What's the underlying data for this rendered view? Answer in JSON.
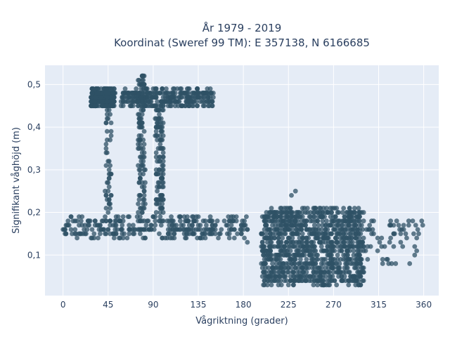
{
  "chart_data": {
    "type": "scatter",
    "title": "År 1979 - 2019",
    "subtitle": "Koordinat (Sweref 99 TM): E 357138, N 6166685",
    "xlabel": "Vågriktning (grader)",
    "ylabel": "Signifikant våghöjd (m)",
    "xlim": [
      -18,
      375
    ],
    "ylim": [
      0.005,
      0.545
    ],
    "xticks": [
      0,
      45,
      90,
      135,
      180,
      225,
      270,
      315,
      360
    ],
    "xtick_labels": [
      "0",
      "45",
      "90",
      "135",
      "180",
      "225",
      "270",
      "315",
      "360"
    ],
    "yticks": [
      0.1,
      0.2,
      0.3,
      0.4,
      0.5
    ],
    "ytick_labels": [
      "0,1",
      "0,2",
      "0,3",
      "0,4",
      "0,5"
    ],
    "grid": true,
    "marker_color": "#2f5266",
    "plot_bg": "#e5ecf6",
    "clusters": [
      {
        "x_range": [
          0,
          185
        ],
        "y_range": [
          0.14,
          0.19
        ],
        "density": "high"
      },
      {
        "x_range": [
          28,
          52
        ],
        "y_range": [
          0.45,
          0.49
        ],
        "density": "high"
      },
      {
        "x_range": [
          42,
          48
        ],
        "y_range": [
          0.2,
          0.45
        ],
        "density": "low"
      },
      {
        "x_range": [
          58,
          150
        ],
        "y_range": [
          0.45,
          0.49
        ],
        "density": "high"
      },
      {
        "x_range": [
          75,
          82
        ],
        "y_range": [
          0.2,
          0.52
        ],
        "density": "medium"
      },
      {
        "x_range": [
          92,
          100
        ],
        "y_range": [
          0.2,
          0.45
        ],
        "density": "medium"
      },
      {
        "x_range": [
          198,
          300
        ],
        "y_range": [
          0.03,
          0.21
        ],
        "density": "very high"
      },
      {
        "x_range": [
          300,
          360
        ],
        "y_range": [
          0.08,
          0.18
        ],
        "density": "low"
      }
    ],
    "points": [
      {
        "x": 0,
        "y": 0.16
      },
      {
        "x": 3,
        "y": 0.15
      },
      {
        "x": 8,
        "y": 0.19
      },
      {
        "x": 12,
        "y": 0.18
      },
      {
        "x": 44,
        "y": 0.43
      },
      {
        "x": 44,
        "y": 0.37
      },
      {
        "x": 45,
        "y": 0.32
      },
      {
        "x": 46,
        "y": 0.26
      },
      {
        "x": 79,
        "y": 0.52
      },
      {
        "x": 81,
        "y": 0.52
      },
      {
        "x": 232,
        "y": 0.25
      },
      {
        "x": 228,
        "y": 0.24
      },
      {
        "x": 184,
        "y": 0.13
      },
      {
        "x": 300,
        "y": 0.14
      },
      {
        "x": 305,
        "y": 0.16
      },
      {
        "x": 310,
        "y": 0.18
      },
      {
        "x": 316,
        "y": 0.13
      },
      {
        "x": 318,
        "y": 0.12
      },
      {
        "x": 330,
        "y": 0.17
      },
      {
        "x": 335,
        "y": 0.17
      },
      {
        "x": 340,
        "y": 0.16
      },
      {
        "x": 345,
        "y": 0.18
      },
      {
        "x": 352,
        "y": 0.17
      },
      {
        "x": 358,
        "y": 0.18
      },
      {
        "x": 326,
        "y": 0.13
      },
      {
        "x": 330,
        "y": 0.12
      },
      {
        "x": 323,
        "y": 0.09
      },
      {
        "x": 325,
        "y": 0.08
      },
      {
        "x": 328,
        "y": 0.08
      },
      {
        "x": 332,
        "y": 0.08
      },
      {
        "x": 345,
        "y": 0.17
      },
      {
        "x": 355,
        "y": 0.15
      }
    ]
  }
}
